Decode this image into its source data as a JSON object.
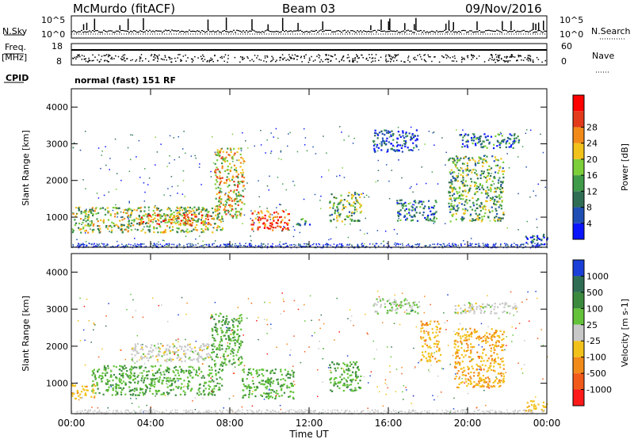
{
  "header": {
    "station": "McMurdo (fitACF)",
    "beam": "Beam 03",
    "date": "09/Nov/2016"
  },
  "strip": {
    "nsky_label": "N.Sky",
    "nsearch_label": "N.Search",
    "noise_ticks_left": [
      "10^5",
      "10^0"
    ],
    "noise_ticks_right": [
      "10^5",
      "10^0"
    ],
    "freq_label": "Freq.",
    "freq_unit": "[MHz]",
    "freq_ticks": [
      "18",
      "8"
    ],
    "nave_label": "Nave",
    "nave_ticks": [
      "60",
      "0"
    ],
    "cpid_label": "CPID",
    "cpid_value": "normal (fast) 151 RF"
  },
  "chart_data": [
    {
      "type": "heatmap",
      "title": "",
      "xlabel": "Time UT",
      "ylabel": "Slant Range [km]",
      "xlim_hours": [
        0,
        24
      ],
      "ylim_km": [
        180,
        4500
      ],
      "x_tick_labels": [
        "00:00",
        "04:00",
        "08:00",
        "12:00",
        "16:00",
        "20:00",
        "00:00"
      ],
      "y_tick_labels": [
        "1000",
        "2000",
        "3000",
        "4000"
      ],
      "colorbar": {
        "label": "Power [dB]",
        "ticks": [
          "4",
          "8",
          "12",
          "16",
          "20",
          "24",
          "28"
        ],
        "colors": [
          "#0a14ff",
          "#1f4fb4",
          "#2f6e55",
          "#3f9a4a",
          "#7ccf3a",
          "#f2c21a",
          "#f28a1a",
          "#e23a1a",
          "#ff0000"
        ]
      },
      "echo_regions": [
        {
          "t_start": 0.0,
          "t_end": 7.6,
          "r_min": 600,
          "r_max": 1300,
          "level": 16
        },
        {
          "t_start": 3.4,
          "t_end": 7.0,
          "r_min": 800,
          "r_max": 1100,
          "level": 22
        },
        {
          "t_start": 7.2,
          "t_end": 8.7,
          "r_min": 1000,
          "r_max": 2900,
          "level": 18
        },
        {
          "t_start": 9.0,
          "t_end": 11.0,
          "r_min": 650,
          "r_max": 1200,
          "level": 24
        },
        {
          "t_start": 11.3,
          "t_end": 12.0,
          "r_min": 800,
          "r_max": 1000,
          "level": 12
        },
        {
          "t_start": 13.0,
          "t_end": 14.6,
          "r_min": 900,
          "r_max": 1700,
          "level": 14
        },
        {
          "t_start": 15.2,
          "t_end": 17.5,
          "r_min": 2800,
          "r_max": 3400,
          "level": 8
        },
        {
          "t_start": 16.4,
          "t_end": 18.4,
          "r_min": 900,
          "r_max": 1500,
          "level": 10
        },
        {
          "t_start": 19.0,
          "t_end": 21.8,
          "r_min": 900,
          "r_max": 2700,
          "level": 14
        },
        {
          "t_start": 19.5,
          "t_end": 22.6,
          "r_min": 2900,
          "r_max": 3300,
          "level": 10
        },
        {
          "t_start": 22.8,
          "t_end": 24.0,
          "r_min": 250,
          "r_max": 550,
          "level": 8
        }
      ]
    },
    {
      "type": "heatmap",
      "title": "",
      "xlabel": "Time UT",
      "ylabel": "Slant Range [km]",
      "xlim_hours": [
        0,
        24
      ],
      "ylim_km": [
        180,
        4500
      ],
      "x_tick_labels": [
        "00:00",
        "04:00",
        "08:00",
        "12:00",
        "16:00",
        "20:00",
        "00:00"
      ],
      "y_tick_labels": [
        "1000",
        "2000",
        "3000",
        "4000"
      ],
      "colorbar": {
        "label": "Velocity [m s-1]",
        "ticks": [
          "1000",
          "500",
          "100",
          "25",
          "-25",
          "-100",
          "-500",
          "-1000"
        ],
        "colors": [
          "#1a3fd8",
          "#2f6e55",
          "#3c8a3e",
          "#63c23a",
          "#c8c8c8",
          "#f2c21a",
          "#f28a1a",
          "#f25a1a",
          "#ff1a1a"
        ]
      },
      "echo_regions": [
        {
          "t_start": 0.0,
          "t_end": 1.2,
          "r_min": 600,
          "r_max": 1000,
          "level": -250
        },
        {
          "t_start": 1.0,
          "t_end": 7.6,
          "r_min": 700,
          "r_max": 1500,
          "level": 300
        },
        {
          "t_start": 3.0,
          "t_end": 7.0,
          "r_min": 1600,
          "r_max": 2100,
          "level": 0
        },
        {
          "t_start": 7.0,
          "t_end": 8.6,
          "r_min": 1500,
          "r_max": 2900,
          "level": 300
        },
        {
          "t_start": 8.6,
          "t_end": 11.2,
          "r_min": 600,
          "r_max": 1400,
          "level": 300
        },
        {
          "t_start": 13.0,
          "t_end": 14.6,
          "r_min": 800,
          "r_max": 1600,
          "level": 300
        },
        {
          "t_start": 15.2,
          "t_end": 17.6,
          "r_min": 2900,
          "r_max": 3300,
          "level": 100
        },
        {
          "t_start": 17.6,
          "t_end": 18.6,
          "r_min": 1600,
          "r_max": 2700,
          "level": -300
        },
        {
          "t_start": 19.3,
          "t_end": 21.8,
          "r_min": 900,
          "r_max": 2500,
          "level": -300
        },
        {
          "t_start": 19.3,
          "t_end": 22.5,
          "r_min": 2900,
          "r_max": 3200,
          "level": 0
        },
        {
          "t_start": 22.8,
          "t_end": 24.0,
          "r_min": 250,
          "r_max": 550,
          "level": -250
        }
      ]
    }
  ]
}
